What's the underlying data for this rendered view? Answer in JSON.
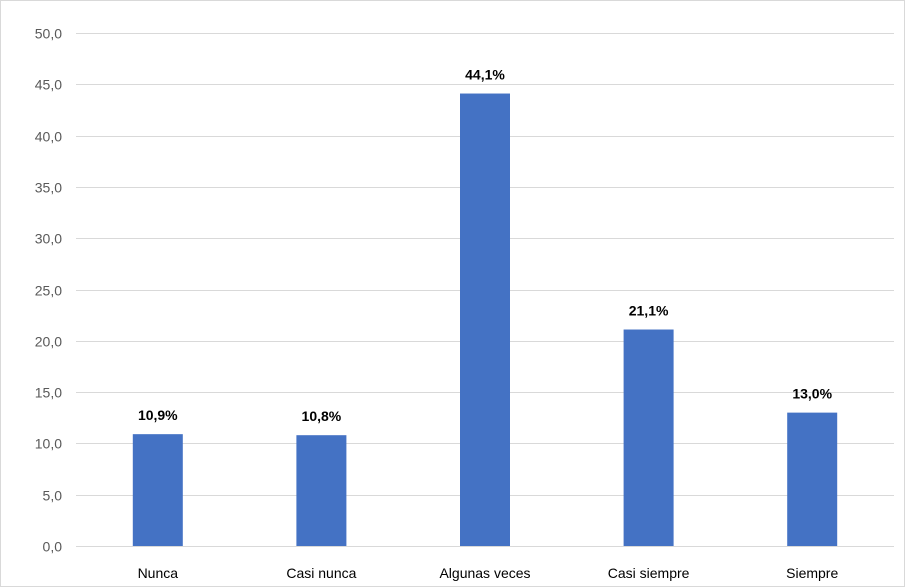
{
  "chart_data": {
    "type": "bar",
    "categories": [
      "Nunca",
      "Casi nunca",
      "Algunas veces",
      "Casi siempre",
      "Siempre"
    ],
    "values": [
      10.9,
      10.8,
      44.1,
      21.1,
      13.0
    ],
    "data_labels": [
      "10,9%",
      "10,8%",
      "44,1%",
      "21,1%",
      "13,0%"
    ],
    "y_ticks": [
      0,
      5,
      10,
      15,
      20,
      25,
      30,
      35,
      40,
      45,
      50
    ],
    "y_tick_labels": [
      "0,0",
      "5,0",
      "10,0",
      "15,0",
      "20,0",
      "25,0",
      "30,0",
      "35,0",
      "40,0",
      "45,0",
      "50,0"
    ],
    "ylim": [
      0,
      50
    ],
    "grid": true,
    "legend": "none",
    "title": "",
    "xlabel": "",
    "ylabel": "",
    "bar_color": "#4472c4",
    "grid_color": "#d9d9d9",
    "tick_color": "#595959"
  }
}
